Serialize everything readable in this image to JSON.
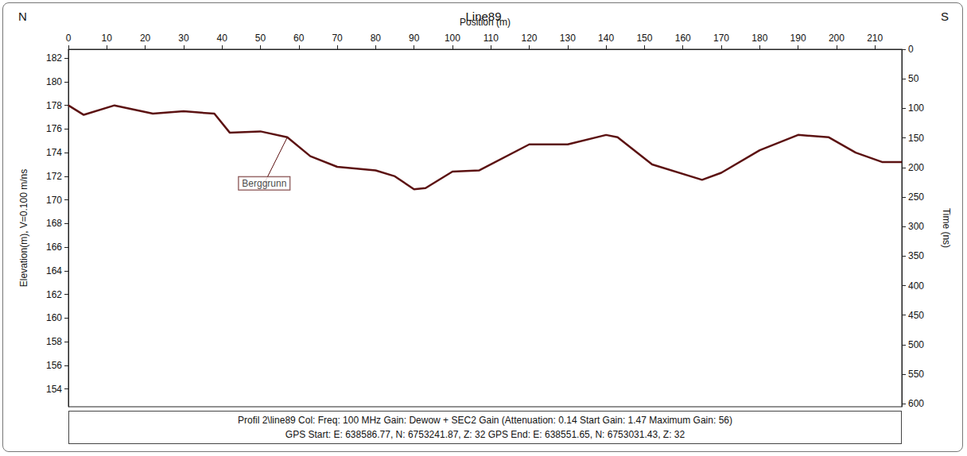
{
  "chart_data": {
    "type": "line",
    "title": "Line89",
    "corner_labels": {
      "left": "N",
      "right": "S"
    },
    "x_label": "Position (m)",
    "y_label": "Elevation(m), V=0.100 m/ns",
    "y2_label": "Time (ns)",
    "xlim": [
      0,
      217
    ],
    "xticks": [
      0,
      10,
      20,
      30,
      40,
      50,
      60,
      70,
      80,
      90,
      100,
      110,
      120,
      130,
      140,
      150,
      160,
      170,
      180,
      190,
      200,
      210
    ],
    "ylim": [
      152.5,
      182.75
    ],
    "yticks": [
      154,
      156,
      158,
      160,
      162,
      164,
      166,
      168,
      170,
      172,
      174,
      176,
      178,
      180,
      182
    ],
    "y2lim": [
      0,
      605
    ],
    "y2ticks": [
      0,
      50,
      100,
      150,
      200,
      250,
      300,
      350,
      400,
      450,
      500,
      550,
      600
    ],
    "grid": false,
    "series": [
      {
        "name": "Berggrunn",
        "color": "#5c1212",
        "x": [
          0,
          4,
          12,
          22,
          30,
          38,
          42,
          50,
          57,
          63,
          70,
          80,
          85,
          90,
          93,
          100,
          107,
          120,
          130,
          140,
          143,
          152,
          165,
          170,
          180,
          190,
          198,
          205,
          212,
          217
        ],
        "values": [
          178.0,
          177.2,
          178.0,
          177.3,
          177.5,
          177.3,
          175.7,
          175.8,
          175.3,
          173.7,
          172.8,
          172.5,
          172.0,
          170.9,
          171.0,
          172.4,
          172.5,
          174.7,
          174.7,
          175.5,
          175.3,
          173.0,
          171.7,
          172.3,
          174.2,
          175.5,
          175.3,
          174.0,
          173.2,
          173.2
        ]
      }
    ],
    "annotations": [
      {
        "text": "Berggrunn",
        "x": 57,
        "y": 175.3,
        "text_x": 51,
        "text_y": 171.4
      }
    ],
    "footer": [
      "Profil 2\\line89  Col:  Freq: 100 MHz  Gain: Dewow + SEC2 Gain (Attenuation: 0.14 Start Gain: 1.47 Maximum Gain: 56)",
      "GPS Start: E: 638586.77, N: 6753241.87, Z: 32  GPS End: E: 638551.65, N: 6753031.43, Z: 32"
    ]
  }
}
